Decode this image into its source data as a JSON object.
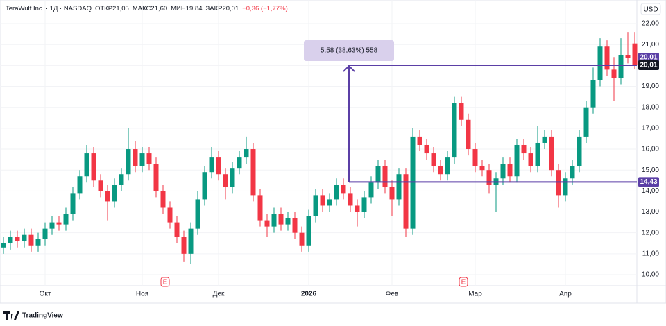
{
  "chart_data": {
    "type": "candlestick",
    "header": [
      "TeraWulf Inc. · 1Д · NASDAQ",
      "ОТКР21,05",
      "МАКС21,60",
      "МИН19,84",
      "ЗАКР20,01",
      "−0,36 (−1,77%)"
    ],
    "currency": "USD",
    "up_color": "#089981",
    "down_color": "#f23645",
    "grid": true,
    "categories": [
      null,
      null,
      null,
      null,
      null,
      null,
      "Окт",
      null,
      null,
      null,
      null,
      null,
      null,
      null,
      null,
      null,
      null,
      null,
      null,
      null,
      "Ноя",
      null,
      null,
      null,
      null,
      null,
      null,
      null,
      null,
      null,
      null,
      "Дек",
      null,
      null,
      null,
      null,
      null,
      null,
      null,
      null,
      null,
      null,
      null,
      null,
      "2026",
      null,
      null,
      null,
      null,
      null,
      null,
      null,
      null,
      null,
      null,
      null,
      "Фев",
      null,
      null,
      null,
      null,
      null,
      null,
      null,
      null,
      null,
      null,
      null,
      "Мар",
      null,
      null,
      null,
      null,
      null,
      null,
      null,
      null,
      null,
      null,
      null,
      null,
      "Апр",
      null,
      null,
      null,
      null,
      null,
      null,
      null,
      null,
      null,
      null
    ],
    "open": [
      11.3,
      11.5,
      11.8,
      11.6,
      11.9,
      11.4,
      11.7,
      12.2,
      12.5,
      12.4,
      12.9,
      13.9,
      14.7,
      15.8,
      14.5,
      14.0,
      13.5,
      14.3,
      14.8,
      16.0,
      15.2,
      15.8,
      15.3,
      14.0,
      13.2,
      12.5,
      11.8,
      11.0,
      12.2,
      13.6,
      14.9,
      15.6,
      14.8,
      14.2,
      15.1,
      15.6,
      16.0,
      13.8,
      12.6,
      12.3,
      12.9,
      12.4,
      12.7,
      12.0,
      11.4,
      12.8,
      13.8,
      13.3,
      13.6,
      14.3,
      13.9,
      13.3,
      13.0,
      13.7,
      14.4,
      15.2,
      14.2,
      13.6,
      14.8,
      12.2,
      16.6,
      16.2,
      15.8,
      15.2,
      14.8,
      15.6,
      18.2,
      17.4,
      16.0,
      15.2,
      15.0,
      14.3,
      14.6,
      15.3,
      14.7,
      16.2,
      15.8,
      15.2,
      16.3,
      16.6,
      15.0,
      13.8,
      14.6,
      15.2,
      16.6,
      18.0,
      19.3,
      20.9,
      19.8,
      19.4,
      20.5,
      21.05
    ],
    "high": [
      11.8,
      12.1,
      12.1,
      12.2,
      12.2,
      12.0,
      12.5,
      12.8,
      12.8,
      13.2,
      14.2,
      15.0,
      16.2,
      16.1,
      14.8,
      14.3,
      14.6,
      15.1,
      17.0,
      16.4,
      16.1,
      16.1,
      15.6,
      14.3,
      13.5,
      12.8,
      12.1,
      12.5,
      14.0,
      15.2,
      16.1,
      15.9,
      15.1,
      15.4,
      15.9,
      16.6,
      16.3,
      14.1,
      12.9,
      13.2,
      13.2,
      13.0,
      13.0,
      12.3,
      13.1,
      14.1,
      14.1,
      13.9,
      14.6,
      14.6,
      14.2,
      13.6,
      14.0,
      14.7,
      15.5,
      15.5,
      14.5,
      15.1,
      15.1,
      17.0,
      16.9,
      16.5,
      16.1,
      15.5,
      15.9,
      18.5,
      18.5,
      17.7,
      16.3,
      15.5,
      15.3,
      14.9,
      15.6,
      15.6,
      16.5,
      16.5,
      16.1,
      17.1,
      16.9,
      16.9,
      15.3,
      14.9,
      15.5,
      16.9,
      18.3,
      19.9,
      21.3,
      21.2,
      20.4,
      21.3,
      21.6,
      21.6
    ],
    "low": [
      11.0,
      11.2,
      11.3,
      11.3,
      11.1,
      11.1,
      11.4,
      11.9,
      12.1,
      12.1,
      12.6,
      13.6,
      14.4,
      14.2,
      13.7,
      12.6,
      13.2,
      14.0,
      14.5,
      14.9,
      14.9,
      15.0,
      13.7,
      12.9,
      12.2,
      11.5,
      10.6,
      10.5,
      11.9,
      13.3,
      14.6,
      14.5,
      13.6,
      13.9,
      14.8,
      15.3,
      13.5,
      12.3,
      11.8,
      12.0,
      12.1,
      12.1,
      11.7,
      11.1,
      11.1,
      12.5,
      13.0,
      13.0,
      13.3,
      13.6,
      13.0,
      12.3,
      12.7,
      13.4,
      14.1,
      13.9,
      12.8,
      13.3,
      11.8,
      11.9,
      15.9,
      15.5,
      14.9,
      14.5,
      14.5,
      15.3,
      17.1,
      15.7,
      14.9,
      14.7,
      13.9,
      13.0,
      14.3,
      14.4,
      14.4,
      15.5,
      14.9,
      14.9,
      16.0,
      14.7,
      13.2,
      13.5,
      14.3,
      14.9,
      16.3,
      17.7,
      19.0,
      19.5,
      18.3,
      19.1,
      20.1,
      19.84
    ],
    "close": [
      11.5,
      11.8,
      11.6,
      11.9,
      11.4,
      11.7,
      12.2,
      12.5,
      12.4,
      12.9,
      13.9,
      14.7,
      15.8,
      14.5,
      14.0,
      13.5,
      14.3,
      14.8,
      16.0,
      15.2,
      15.8,
      15.3,
      14.0,
      13.2,
      12.5,
      11.8,
      11.0,
      12.2,
      13.6,
      14.9,
      15.6,
      14.8,
      14.2,
      15.1,
      15.6,
      16.0,
      13.8,
      12.6,
      12.3,
      12.9,
      12.4,
      12.7,
      12.0,
      11.4,
      12.8,
      13.8,
      13.3,
      13.6,
      14.3,
      13.9,
      13.3,
      13.0,
      13.7,
      14.4,
      15.2,
      14.2,
      13.6,
      14.8,
      12.2,
      16.6,
      16.2,
      15.8,
      15.2,
      14.8,
      15.6,
      18.2,
      17.4,
      16.0,
      15.2,
      15.0,
      14.3,
      14.6,
      15.3,
      14.7,
      16.2,
      15.8,
      15.2,
      16.3,
      16.6,
      15.0,
      13.8,
      14.6,
      15.2,
      16.6,
      18.0,
      19.3,
      20.9,
      19.8,
      19.4,
      20.5,
      20.37,
      20.01
    ],
    "ylim": [
      9.47,
      22.2
    ],
    "yticks": [
      {
        "value": 10,
        "label": "10,00"
      },
      {
        "value": 11,
        "label": "11,00"
      },
      {
        "value": 12,
        "label": "12,00"
      },
      {
        "value": 13,
        "label": "13,00"
      },
      {
        "value": 14,
        "label": "14,00"
      },
      {
        "value": 15,
        "label": "15,00"
      },
      {
        "value": 16,
        "label": "16,00"
      },
      {
        "value": 17,
        "label": "17,00"
      },
      {
        "value": 18,
        "label": "18,00"
      },
      {
        "value": 19,
        "label": "19,00"
      },
      {
        "value": 20,
        "label": "20,00"
      },
      {
        "value": 21,
        "label": "21,00"
      },
      {
        "value": 22,
        "label": "22,00"
      }
    ],
    "measure": {
      "label": "5,58 (38,63%) 558",
      "from": {
        "value": 14.43,
        "label": "14,43"
      },
      "to": {
        "value": 20.01,
        "label": "20,01"
      },
      "color": "#5b3fa6"
    },
    "last_price": {
      "value": 20.01,
      "label": "20,01"
    },
    "earnings": [
      "E",
      "E"
    ],
    "brand": "TradingView"
  }
}
